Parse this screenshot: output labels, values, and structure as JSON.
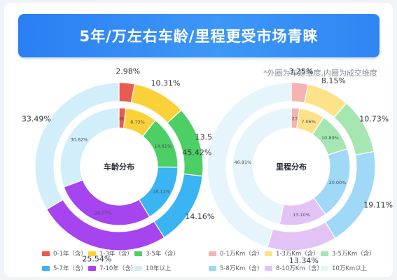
{
  "header": {
    "title": "5年/万左右车龄/里程更受市场青睐",
    "note": "*外圈为车源维度,内圈为成交维度"
  },
  "chart_data": [
    {
      "type": "donut",
      "center_label": "车龄分布",
      "categories": [
        "0-1年（含）",
        "1-3年（含）",
        "3-5年（含）",
        "5-7年（含）",
        "7-10年（含）",
        "10年以上"
      ],
      "colors": [
        "#ea5a4f",
        "#fbd13a",
        "#4ccf65",
        "#3ab4f2",
        "#a644f0",
        "#d2eefb"
      ],
      "series": [
        {
          "ring": "outer",
          "values": [
            2.98,
            10.31,
            13.52,
            14.16,
            25.54,
            33.49
          ],
          "labels": [
            "2.98%",
            "10.31%",
            "13.52%",
            "14.16%",
            "25.54%",
            "33.49%"
          ]
        },
        {
          "ring": "inner",
          "values": [
            1.86,
            8.73,
            14.61,
            16.11,
            28.07,
            30.62
          ],
          "labels": [
            "1.86%",
            "8.73%",
            "14.61%",
            "16.11%",
            "28.07%",
            "30.62%"
          ]
        }
      ]
    },
    {
      "type": "donut",
      "center_label": "里程分布",
      "categories": [
        "0-1万Km（含）",
        "1-3万Km（含）",
        "3-5万Km（含）",
        "5-8万Km（含）",
        "8-10万Km（含）",
        "10万Km以上"
      ],
      "colors": [
        "#f6b3b1",
        "#fce38a",
        "#a6e6b2",
        "#9fd9f7",
        "#e3c3f6",
        "#e6f5fc"
      ],
      "series": [
        {
          "ring": "outer",
          "values": [
            3.25,
            8.15,
            10.73,
            19.11,
            13.34,
            45.42
          ],
          "labels": [
            "3.25%",
            "8.15%",
            "10.73%",
            "19.11%",
            "13.34%",
            "45.42%"
          ]
        },
        {
          "ring": "inner",
          "values": [
            2.23,
            7.06,
            10.8,
            20.0,
            13.1,
            46.81
          ],
          "labels": [
            "2.23%",
            "7.06%",
            "10.80%",
            "20.00%",
            "13.10%",
            "46.81%"
          ]
        }
      ]
    }
  ]
}
